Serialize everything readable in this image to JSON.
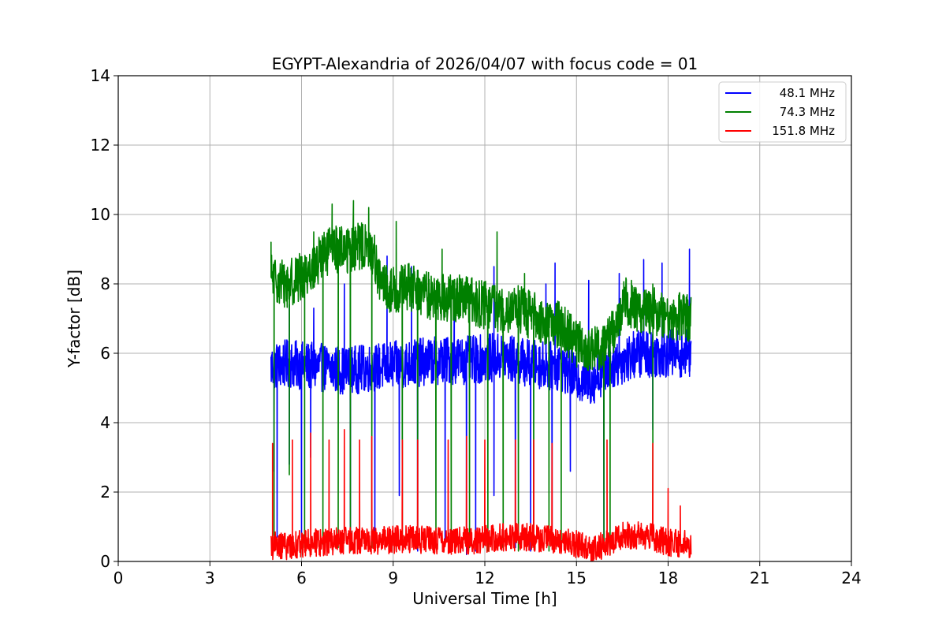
{
  "chart_data": {
    "type": "line",
    "title": "EGYPT-Alexandria of 2026/04/07 with focus code = 01",
    "xlabel": "Universal Time [h]",
    "ylabel": "Y-factor [dB]",
    "xlim": [
      0,
      24
    ],
    "ylim": [
      0,
      14
    ],
    "xticks": [
      0,
      3,
      6,
      9,
      12,
      15,
      18,
      21,
      24
    ],
    "yticks": [
      0,
      2,
      4,
      6,
      8,
      10,
      12,
      14
    ],
    "grid": true,
    "legend_position": "top-right",
    "series": [
      {
        "name": "48.1 MHz",
        "color": "#0000ff",
        "baseline": [
          [
            5.0,
            5.6
          ],
          [
            5.5,
            5.7
          ],
          [
            6.5,
            5.6
          ],
          [
            7.5,
            5.5
          ],
          [
            8.5,
            5.6
          ],
          [
            9.5,
            5.7
          ],
          [
            10.5,
            5.8
          ],
          [
            11.5,
            5.8
          ],
          [
            12.5,
            5.9
          ],
          [
            13.5,
            5.7
          ],
          [
            14.5,
            5.6
          ],
          [
            15.0,
            5.3
          ],
          [
            15.5,
            5.2
          ],
          [
            16.0,
            5.6
          ],
          [
            16.5,
            5.8
          ],
          [
            17.0,
            6.0
          ],
          [
            17.5,
            6.0
          ],
          [
            18.0,
            6.0
          ],
          [
            18.75,
            6.0
          ]
        ],
        "band": 0.7,
        "spikes_up": [
          [
            5.6,
            7.4
          ],
          [
            6.4,
            7.3
          ],
          [
            7.4,
            8.0
          ],
          [
            8.8,
            8.8
          ],
          [
            9.6,
            8.5
          ],
          [
            11.0,
            8.1
          ],
          [
            12.3,
            8.5
          ],
          [
            14.0,
            8.0
          ],
          [
            14.3,
            8.6
          ],
          [
            15.4,
            8.1
          ],
          [
            16.4,
            8.3
          ],
          [
            17.2,
            8.7
          ],
          [
            17.8,
            8.6
          ],
          [
            18.7,
            9.0
          ]
        ],
        "dropouts": [
          [
            5.1,
            2.6
          ],
          [
            5.2,
            0.7
          ],
          [
            5.6,
            2.8
          ],
          [
            6.0,
            0.7
          ],
          [
            6.3,
            3.0
          ],
          [
            7.6,
            0.4
          ],
          [
            8.4,
            0.5
          ],
          [
            9.2,
            1.9
          ],
          [
            9.8,
            0.3
          ],
          [
            10.7,
            0.6
          ],
          [
            11.4,
            0.2
          ],
          [
            11.7,
            0.3
          ],
          [
            12.3,
            1.9
          ],
          [
            13.0,
            0.4
          ],
          [
            13.5,
            0.3
          ],
          [
            14.2,
            0.5
          ],
          [
            14.8,
            2.6
          ],
          [
            15.9,
            0.3
          ],
          [
            17.5,
            3.8
          ]
        ]
      },
      {
        "name": "74.3 MHz",
        "color": "#008000",
        "baseline": [
          [
            5.0,
            8.2
          ],
          [
            5.5,
            8.0
          ],
          [
            6.0,
            8.2
          ],
          [
            6.5,
            8.6
          ],
          [
            7.0,
            9.0
          ],
          [
            7.5,
            9.0
          ],
          [
            8.0,
            9.1
          ],
          [
            8.4,
            8.8
          ],
          [
            8.6,
            7.9
          ],
          [
            9.0,
            7.8
          ],
          [
            9.5,
            7.9
          ],
          [
            10.0,
            7.7
          ],
          [
            10.5,
            7.6
          ],
          [
            11.0,
            7.6
          ],
          [
            11.5,
            7.5
          ],
          [
            12.0,
            7.4
          ],
          [
            12.5,
            7.3
          ],
          [
            13.0,
            7.3
          ],
          [
            13.5,
            7.1
          ],
          [
            14.0,
            6.9
          ],
          [
            14.5,
            6.8
          ],
          [
            15.0,
            6.3
          ],
          [
            15.5,
            6.0
          ],
          [
            16.0,
            6.4
          ],
          [
            16.3,
            6.8
          ],
          [
            16.6,
            7.5
          ],
          [
            17.0,
            7.3
          ],
          [
            17.5,
            7.2
          ],
          [
            18.0,
            7.1
          ],
          [
            18.75,
            7.0
          ]
        ],
        "band": 0.7,
        "spikes_up": [
          [
            5.0,
            9.2
          ],
          [
            6.4,
            9.5
          ],
          [
            7.0,
            10.3
          ],
          [
            7.7,
            10.4
          ],
          [
            8.2,
            10.2
          ],
          [
            9.1,
            9.8
          ],
          [
            10.6,
            9.0
          ],
          [
            12.4,
            9.5
          ],
          [
            13.3,
            8.3
          ],
          [
            16.8,
            8.1
          ],
          [
            17.5,
            8.0
          ]
        ],
        "dropouts": [
          [
            5.1,
            0.5
          ],
          [
            5.6,
            2.5
          ],
          [
            6.1,
            0.4
          ],
          [
            6.7,
            0.5
          ],
          [
            7.2,
            0.4
          ],
          [
            7.6,
            0.3
          ],
          [
            8.3,
            0.4
          ],
          [
            9.3,
            0.5
          ],
          [
            9.8,
            0.4
          ],
          [
            10.4,
            0.4
          ],
          [
            10.9,
            0.3
          ],
          [
            11.5,
            0.4
          ],
          [
            12.1,
            0.3
          ],
          [
            12.6,
            0.4
          ],
          [
            13.1,
            0.3
          ],
          [
            13.6,
            0.4
          ],
          [
            14.1,
            0.3
          ],
          [
            14.5,
            0.5
          ],
          [
            15.9,
            0.3
          ],
          [
            16.1,
            0.2
          ],
          [
            17.5,
            1.0
          ]
        ]
      },
      {
        "name": "151.8 MHz",
        "color": "#ff0000",
        "baseline": [
          [
            5.0,
            0.45
          ],
          [
            5.5,
            0.45
          ],
          [
            6.5,
            0.55
          ],
          [
            7.5,
            0.6
          ],
          [
            8.5,
            0.6
          ],
          [
            9.5,
            0.65
          ],
          [
            10.5,
            0.6
          ],
          [
            11.5,
            0.6
          ],
          [
            12.5,
            0.7
          ],
          [
            13.5,
            0.7
          ],
          [
            14.5,
            0.6
          ],
          [
            15.0,
            0.5
          ],
          [
            15.5,
            0.4
          ],
          [
            16.0,
            0.5
          ],
          [
            16.5,
            0.75
          ],
          [
            17.0,
            0.75
          ],
          [
            17.5,
            0.7
          ],
          [
            18.0,
            0.55
          ],
          [
            18.75,
            0.5
          ]
        ],
        "band": 0.4,
        "spikes_up": [
          [
            5.05,
            3.4
          ],
          [
            5.7,
            3.5
          ],
          [
            6.3,
            3.7
          ],
          [
            6.9,
            3.5
          ],
          [
            7.4,
            3.8
          ],
          [
            7.9,
            3.5
          ],
          [
            8.3,
            3.6
          ],
          [
            9.3,
            3.5
          ],
          [
            9.8,
            3.5
          ],
          [
            10.8,
            3.5
          ],
          [
            11.4,
            3.6
          ],
          [
            12.0,
            3.5
          ],
          [
            13.0,
            3.5
          ],
          [
            13.6,
            3.5
          ],
          [
            14.2,
            3.4
          ],
          [
            16.0,
            3.5
          ],
          [
            17.5,
            3.4
          ],
          [
            18.0,
            2.1
          ],
          [
            18.4,
            1.6
          ]
        ],
        "dropouts": []
      }
    ]
  }
}
